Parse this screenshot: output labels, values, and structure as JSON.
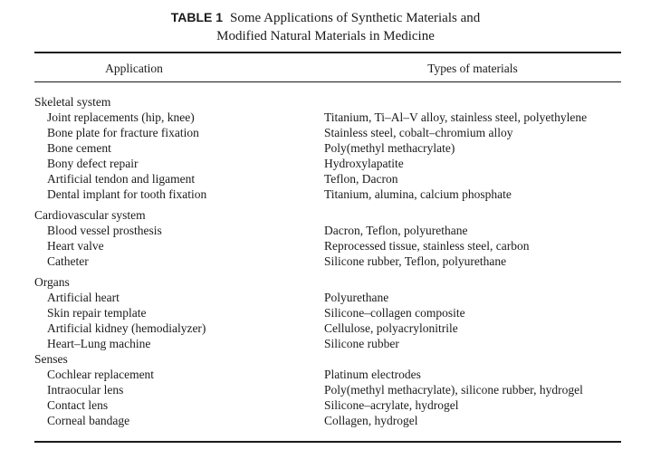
{
  "table": {
    "label": "TABLE 1",
    "title_line1": "Some Applications of Synthetic Materials and",
    "title_line2": "Modified Natural Materials in Medicine",
    "col_application": "Application",
    "col_materials": "Types of materials",
    "sections": [
      {
        "category": "Skeletal system",
        "rows": [
          {
            "application": "Joint replacements (hip, knee)",
            "materials": "Titanium, Ti–Al–V alloy, stainless steel, polyethylene"
          },
          {
            "application": "Bone plate for fracture fixation",
            "materials": "Stainless steel, cobalt–chromium alloy"
          },
          {
            "application": "Bone cement",
            "materials": "Poly(methyl methacrylate)"
          },
          {
            "application": "Bony defect repair",
            "materials": "Hydroxylapatite"
          },
          {
            "application": "Artificial tendon and ligament",
            "materials": "Teflon, Dacron"
          },
          {
            "application": "Dental implant for tooth fixation",
            "materials": "Titanium, alumina, calcium phosphate"
          }
        ]
      },
      {
        "category": "Cardiovascular system",
        "rows": [
          {
            "application": "Blood vessel prosthesis",
            "materials": "Dacron, Teflon, polyurethane"
          },
          {
            "application": "Heart valve",
            "materials": "Reprocessed tissue, stainless steel, carbon"
          },
          {
            "application": "Catheter",
            "materials": "Silicone rubber, Teflon, polyurethane"
          }
        ]
      },
      {
        "category": "Organs",
        "rows": [
          {
            "application": "Artificial heart",
            "materials": "Polyurethane"
          },
          {
            "application": "Skin repair template",
            "materials": "Silicone–collagen composite"
          },
          {
            "application": "Artificial kidney (hemodialyzer)",
            "materials": "Cellulose, polyacrylonitrile"
          },
          {
            "application": "Heart–Lung machine",
            "materials": "Silicone rubber"
          }
        ]
      },
      {
        "category": "Senses",
        "rows": [
          {
            "application": "Cochlear replacement",
            "materials": "Platinum electrodes"
          },
          {
            "application": "Intraocular lens",
            "materials": "Poly(methyl methacrylate), silicone rubber, hydrogel"
          },
          {
            "application": "Contact lens",
            "materials": "Silicone–acrylate, hydrogel"
          },
          {
            "application": "Corneal bandage",
            "materials": "Collagen, hydrogel"
          }
        ]
      }
    ]
  }
}
